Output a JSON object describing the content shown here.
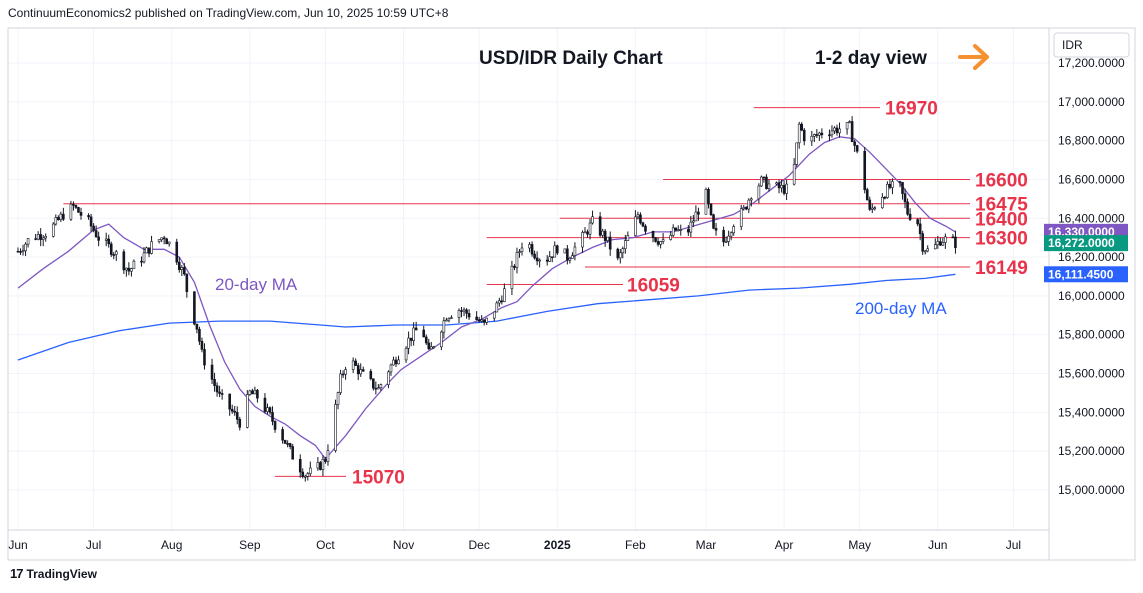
{
  "header": {
    "publisher_line": "ContinuumEconomics2 published on TradingView.com, Jun 10, 2025 10:59 UTC+8"
  },
  "footer": {
    "brand": "TradingView",
    "logo_icon": "tradingview-logo-icon"
  },
  "chart_data": {
    "type": "candlestick",
    "title": "USD/IDR Daily Chart",
    "subtitle": "1-2 day view",
    "subtitle_icon": "arrow-right-icon",
    "currency_label": "IDR",
    "ylim": [
      14800,
      17350
    ],
    "y_ticks": [
      "17,200.0000",
      "17,000.0000",
      "16,800.0000",
      "16,600.0000",
      "16,400.0000",
      "16,200.0000",
      "16,000.0000",
      "15,800.0000",
      "15,600.0000",
      "15,400.0000",
      "15,200.0000",
      "15,000.0000"
    ],
    "y_tick_values": [
      17200,
      17000,
      16800,
      16600,
      16400,
      16200,
      16000,
      15800,
      15600,
      15400,
      15200,
      15000
    ],
    "x_months": [
      "Jun",
      "Jul",
      "Aug",
      "Sep",
      "Oct",
      "Nov",
      "Dec",
      "2025",
      "Feb",
      "Mar",
      "Apr",
      "May",
      "Jun",
      "Jul"
    ],
    "x_month_days": [
      0,
      30,
      61,
      92,
      122,
      153,
      183,
      214,
      245,
      273,
      304,
      334,
      365,
      395
    ],
    "x_last_day": 372,
    "levels": [
      {
        "label": "16970",
        "value": 16970,
        "from_day": 292,
        "color": "#e8334a"
      },
      {
        "label": "16600",
        "value": 16600,
        "from_day": 256,
        "color": "#e8334a"
      },
      {
        "label": "16475",
        "value": 16475,
        "from_day": 18,
        "color": "#e8334a"
      },
      {
        "label": "16400",
        "value": 16400,
        "from_day": 215,
        "color": "#e8334a"
      },
      {
        "label": "16300",
        "value": 16300,
        "from_day": 186,
        "color": "#e8334a"
      },
      {
        "label": "16149",
        "value": 16149,
        "from_day": 225,
        "color": "#e8334a"
      },
      {
        "label": "16059",
        "value": 16059,
        "from_day": 186,
        "color": "#e8334a"
      },
      {
        "label": "15070",
        "value": 15070,
        "from_day": 102,
        "color": "#e8334a"
      }
    ],
    "price_badges": [
      {
        "value": 16330,
        "text": "16,330.0000",
        "color": "#7e57c2"
      },
      {
        "value": 16272,
        "text": "16,272.0000",
        "color": "#089981"
      },
      {
        "value": 16111.45,
        "text": "16,111.4500",
        "color": "#2962ff"
      }
    ],
    "ma_labels": [
      {
        "text": "20-day MA",
        "color": "#7e57c2"
      },
      {
        "text": "200-day MA",
        "color": "#2962ff"
      }
    ],
    "path_anchors": [
      [
        0,
        16230
      ],
      [
        5,
        16300
      ],
      [
        12,
        16330
      ],
      [
        18,
        16420
      ],
      [
        22,
        16460
      ],
      [
        28,
        16380
      ],
      [
        32,
        16300
      ],
      [
        38,
        16230
      ],
      [
        44,
        16130
      ],
      [
        48,
        16180
      ],
      [
        53,
        16260
      ],
      [
        58,
        16310
      ],
      [
        62,
        16230
      ],
      [
        66,
        16100
      ],
      [
        68,
        15960
      ],
      [
        71,
        15840
      ],
      [
        73,
        15700
      ],
      [
        76,
        15600
      ],
      [
        80,
        15480
      ],
      [
        84,
        15420
      ],
      [
        88,
        15350
      ],
      [
        92,
        15500
      ],
      [
        95,
        15480
      ],
      [
        100,
        15380
      ],
      [
        106,
        15250
      ],
      [
        110,
        15150
      ],
      [
        114,
        15080
      ],
      [
        118,
        15100
      ],
      [
        122,
        15160
      ],
      [
        125,
        15350
      ],
      [
        128,
        15570
      ],
      [
        131,
        15680
      ],
      [
        135,
        15620
      ],
      [
        139,
        15560
      ],
      [
        143,
        15520
      ],
      [
        147,
        15620
      ],
      [
        152,
        15720
      ],
      [
        156,
        15790
      ],
      [
        160,
        15850
      ],
      [
        163,
        15700
      ],
      [
        166,
        15780
      ],
      [
        170,
        15900
      ],
      [
        175,
        15930
      ],
      [
        180,
        15900
      ],
      [
        185,
        15850
      ],
      [
        190,
        15950
      ],
      [
        194,
        16050
      ],
      [
        198,
        16200
      ],
      [
        201,
        16300
      ],
      [
        205,
        16220
      ],
      [
        209,
        16180
      ],
      [
        214,
        16250
      ],
      [
        218,
        16200
      ],
      [
        223,
        16280
      ],
      [
        228,
        16380
      ],
      [
        233,
        16300
      ],
      [
        238,
        16180
      ],
      [
        242,
        16300
      ],
      [
        246,
        16420
      ],
      [
        250,
        16330
      ],
      [
        256,
        16270
      ],
      [
        261,
        16340
      ],
      [
        265,
        16310
      ],
      [
        269,
        16420
      ],
      [
        273,
        16520
      ],
      [
        276,
        16330
      ],
      [
        280,
        16280
      ],
      [
        284,
        16380
      ],
      [
        288,
        16440
      ],
      [
        291,
        16530
      ],
      [
        295,
        16590
      ],
      [
        300,
        16560
      ],
      [
        305,
        16550
      ],
      [
        307,
        16560
      ],
      [
        310,
        16880
      ],
      [
        313,
        16790
      ],
      [
        316,
        16820
      ],
      [
        320,
        16850
      ],
      [
        325,
        16860
      ],
      [
        330,
        16870
      ],
      [
        333,
        16730
      ],
      [
        336,
        16560
      ],
      [
        338,
        16430
      ],
      [
        342,
        16510
      ],
      [
        346,
        16560
      ],
      [
        350,
        16560
      ],
      [
        353,
        16430
      ],
      [
        357,
        16380
      ],
      [
        359,
        16260
      ],
      [
        362,
        16220
      ],
      [
        366,
        16290
      ],
      [
        370,
        16290
      ],
      [
        372,
        16272
      ]
    ],
    "ma20": [
      [
        0,
        16040
      ],
      [
        10,
        16140
      ],
      [
        20,
        16230
      ],
      [
        30,
        16340
      ],
      [
        36,
        16370
      ],
      [
        42,
        16300
      ],
      [
        50,
        16240
      ],
      [
        58,
        16240
      ],
      [
        64,
        16200
      ],
      [
        70,
        16070
      ],
      [
        76,
        15850
      ],
      [
        82,
        15660
      ],
      [
        88,
        15520
      ],
      [
        94,
        15430
      ],
      [
        100,
        15380
      ],
      [
        106,
        15340
      ],
      [
        112,
        15280
      ],
      [
        118,
        15230
      ],
      [
        122,
        15160
      ],
      [
        130,
        15280
      ],
      [
        138,
        15420
      ],
      [
        146,
        15540
      ],
      [
        152,
        15620
      ],
      [
        160,
        15690
      ],
      [
        168,
        15760
      ],
      [
        176,
        15840
      ],
      [
        184,
        15880
      ],
      [
        192,
        15940
      ],
      [
        198,
        15970
      ],
      [
        204,
        16050
      ],
      [
        212,
        16140
      ],
      [
        220,
        16200
      ],
      [
        228,
        16250
      ],
      [
        236,
        16290
      ],
      [
        244,
        16300
      ],
      [
        252,
        16330
      ],
      [
        260,
        16330
      ],
      [
        268,
        16360
      ],
      [
        276,
        16390
      ],
      [
        284,
        16420
      ],
      [
        292,
        16480
      ],
      [
        300,
        16560
      ],
      [
        306,
        16620
      ],
      [
        314,
        16730
      ],
      [
        320,
        16790
      ],
      [
        326,
        16820
      ],
      [
        332,
        16810
      ],
      [
        338,
        16740
      ],
      [
        344,
        16660
      ],
      [
        350,
        16580
      ],
      [
        356,
        16480
      ],
      [
        362,
        16400
      ],
      [
        368,
        16360
      ],
      [
        372,
        16330
      ]
    ],
    "ma200": [
      [
        0,
        15670
      ],
      [
        20,
        15760
      ],
      [
        40,
        15820
      ],
      [
        60,
        15860
      ],
      [
        80,
        15870
      ],
      [
        100,
        15870
      ],
      [
        120,
        15850
      ],
      [
        130,
        15840
      ],
      [
        150,
        15850
      ],
      [
        170,
        15850
      ],
      [
        190,
        15870
      ],
      [
        210,
        15920
      ],
      [
        230,
        15960
      ],
      [
        250,
        15980
      ],
      [
        270,
        16000
      ],
      [
        290,
        16030
      ],
      [
        310,
        16040
      ],
      [
        330,
        16060
      ],
      [
        345,
        16080
      ],
      [
        360,
        16090
      ],
      [
        372,
        16111.45
      ]
    ]
  }
}
